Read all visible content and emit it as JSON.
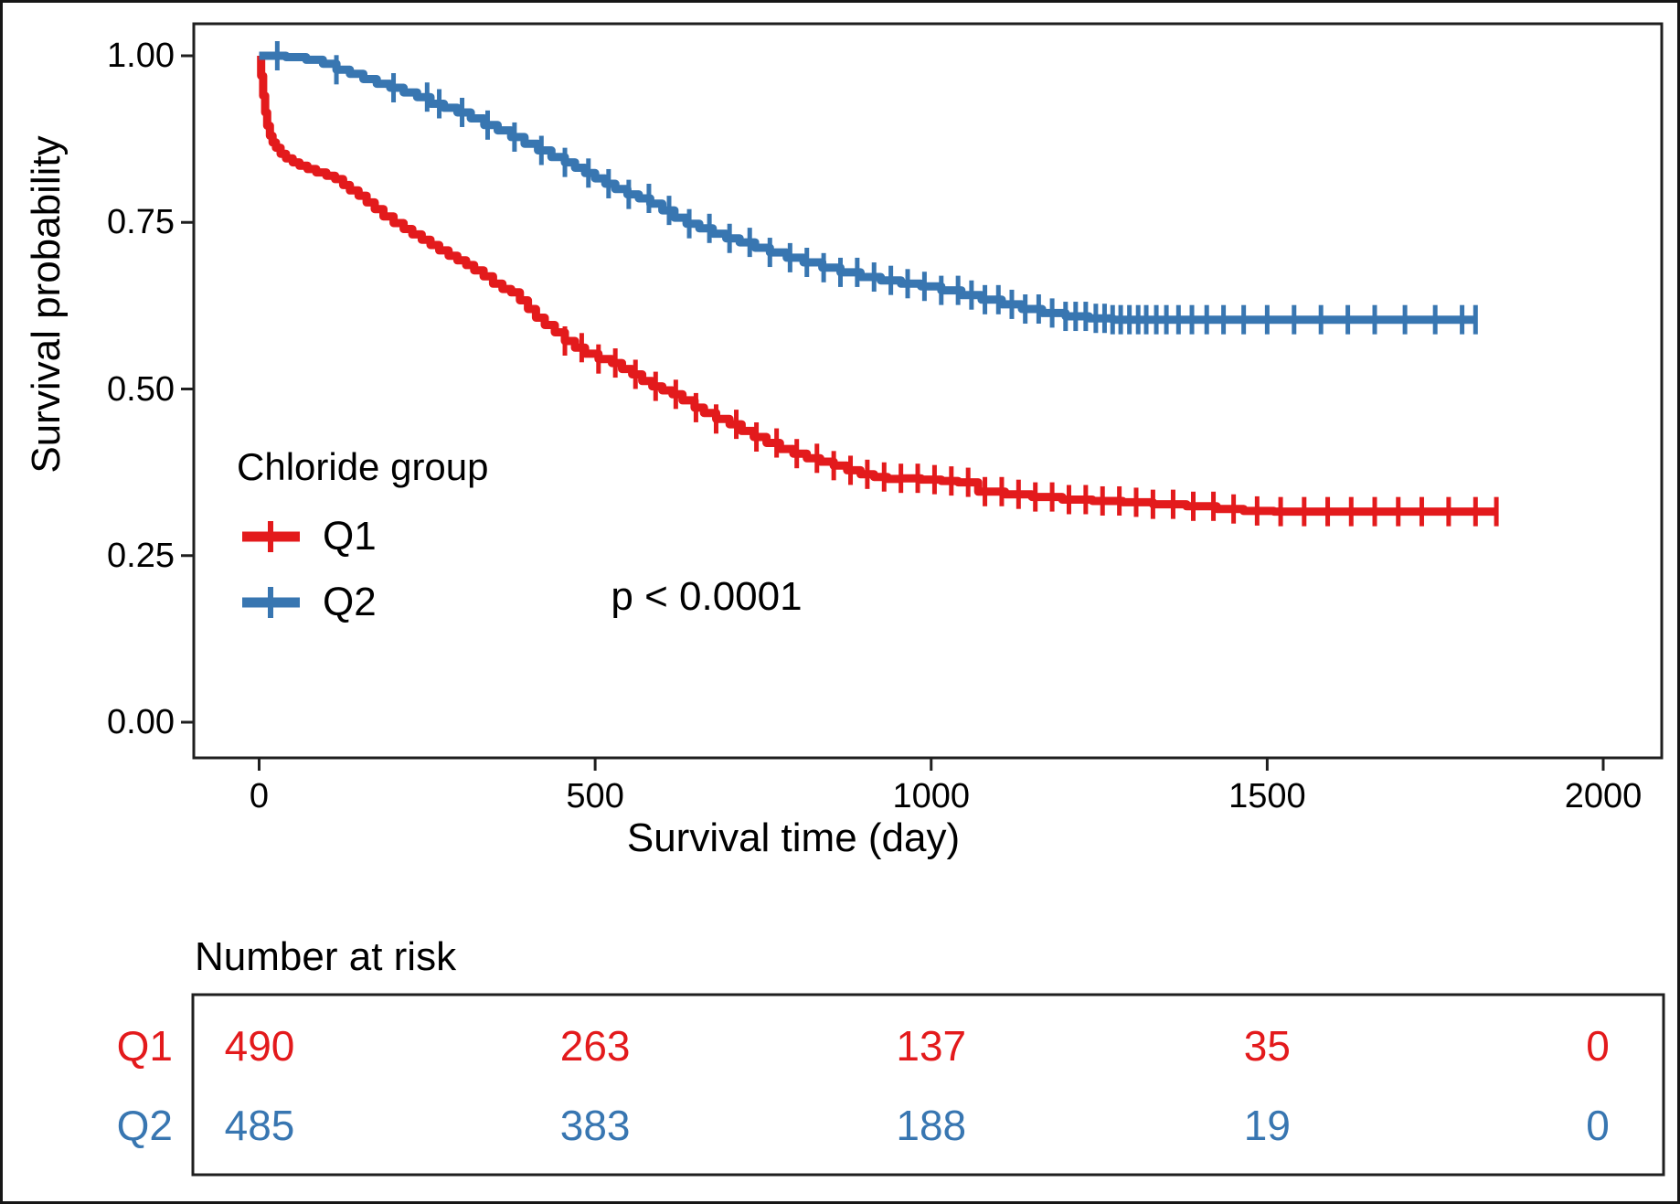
{
  "figure": {
    "background": "#ffffff",
    "frame_color": "#161616",
    "axis_color": "#1f1f1f"
  },
  "chart_data": {
    "type": "line",
    "subtype": "kaplan-meier-step-survival",
    "title": "",
    "xlabel": "Survival time (day)",
    "ylabel": "Survival probability",
    "xlim": [
      0,
      2000
    ],
    "ylim": [
      0.0,
      1.0
    ],
    "grid": "off",
    "xticks": [
      0,
      500,
      1000,
      1500,
      2000
    ],
    "xtick_labels": [
      "0",
      "500",
      "1000",
      "1500",
      "2000"
    ],
    "yticks": [
      1.0,
      0.75,
      0.5,
      0.25,
      0.0
    ],
    "ytick_labels": [
      "1.00",
      "0.75",
      "0.50",
      "0.25",
      "0.00"
    ],
    "legend_title": "Chloride group",
    "legend_position": "inside-left",
    "pvalue_text": "p < 0.0001",
    "series": [
      {
        "name": "Q1",
        "color": "#E31A1C",
        "points": [
          [
            0,
            1.0
          ],
          [
            3,
            0.97
          ],
          [
            6,
            0.94
          ],
          [
            9,
            0.915
          ],
          [
            12,
            0.895
          ],
          [
            16,
            0.88
          ],
          [
            20,
            0.87
          ],
          [
            25,
            0.862
          ],
          [
            32,
            0.853
          ],
          [
            40,
            0.846
          ],
          [
            50,
            0.84
          ],
          [
            60,
            0.835
          ],
          [
            72,
            0.83
          ],
          [
            85,
            0.825
          ],
          [
            100,
            0.82
          ],
          [
            113,
            0.815
          ],
          [
            125,
            0.806
          ],
          [
            135,
            0.798
          ],
          [
            148,
            0.79
          ],
          [
            160,
            0.78
          ],
          [
            172,
            0.77
          ],
          [
            185,
            0.759
          ],
          [
            200,
            0.749
          ],
          [
            215,
            0.74
          ],
          [
            228,
            0.732
          ],
          [
            242,
            0.724
          ],
          [
            255,
            0.716
          ],
          [
            268,
            0.708
          ],
          [
            282,
            0.7
          ],
          [
            295,
            0.693
          ],
          [
            308,
            0.686
          ],
          [
            320,
            0.678
          ],
          [
            334,
            0.669
          ],
          [
            348,
            0.658
          ],
          [
            362,
            0.65
          ],
          [
            375,
            0.645
          ],
          [
            388,
            0.633
          ],
          [
            400,
            0.62
          ],
          [
            412,
            0.607
          ],
          [
            425,
            0.596
          ],
          [
            440,
            0.585
          ],
          [
            455,
            0.572
          ],
          [
            470,
            0.562
          ],
          [
            485,
            0.553
          ],
          [
            505,
            0.545
          ],
          [
            525,
            0.539
          ],
          [
            540,
            0.53
          ],
          [
            555,
            0.522
          ],
          [
            570,
            0.512
          ],
          [
            585,
            0.504
          ],
          [
            600,
            0.498
          ],
          [
            615,
            0.492
          ],
          [
            630,
            0.483
          ],
          [
            648,
            0.472
          ],
          [
            662,
            0.464
          ],
          [
            680,
            0.455
          ],
          [
            700,
            0.447
          ],
          [
            718,
            0.437
          ],
          [
            736,
            0.428
          ],
          [
            755,
            0.419
          ],
          [
            775,
            0.41
          ],
          [
            795,
            0.403
          ],
          [
            815,
            0.396
          ],
          [
            835,
            0.391
          ],
          [
            855,
            0.385
          ],
          [
            875,
            0.378
          ],
          [
            895,
            0.372
          ],
          [
            915,
            0.368
          ],
          [
            935,
            0.365
          ],
          [
            955,
            0.366
          ],
          [
            985,
            0.364
          ],
          [
            1015,
            0.362
          ],
          [
            1040,
            0.36
          ],
          [
            1070,
            0.346
          ],
          [
            1110,
            0.342
          ],
          [
            1150,
            0.338
          ],
          [
            1195,
            0.334
          ],
          [
            1240,
            0.332
          ],
          [
            1285,
            0.33
          ],
          [
            1330,
            0.327
          ],
          [
            1380,
            0.324
          ],
          [
            1425,
            0.32
          ],
          [
            1465,
            0.317
          ],
          [
            1510,
            0.316
          ],
          [
            1841,
            0.316
          ]
        ],
        "censor_times": [
          455,
          480,
          505,
          530,
          560,
          590,
          620,
          650,
          680,
          710,
          740,
          770,
          800,
          830,
          855,
          880,
          905,
          930,
          955,
          980,
          1005,
          1030,
          1055,
          1080,
          1105,
          1130,
          1155,
          1180,
          1205,
          1230,
          1255,
          1280,
          1305,
          1330,
          1360,
          1390,
          1420,
          1450,
          1485,
          1520,
          1555,
          1590,
          1625,
          1660,
          1695,
          1730,
          1770,
          1810,
          1841
        ]
      },
      {
        "name": "Q2",
        "color": "#3876B1",
        "points": [
          [
            0,
            1.0
          ],
          [
            40,
            0.998
          ],
          [
            70,
            0.994
          ],
          [
            95,
            0.988
          ],
          [
            115,
            0.979
          ],
          [
            135,
            0.973
          ],
          [
            155,
            0.965
          ],
          [
            175,
            0.958
          ],
          [
            195,
            0.952
          ],
          [
            215,
            0.945
          ],
          [
            235,
            0.938
          ],
          [
            255,
            0.928
          ],
          [
            275,
            0.922
          ],
          [
            295,
            0.915
          ],
          [
            315,
            0.906
          ],
          [
            335,
            0.896
          ],
          [
            355,
            0.888
          ],
          [
            375,
            0.878
          ],
          [
            395,
            0.868
          ],
          [
            415,
            0.858
          ],
          [
            435,
            0.848
          ],
          [
            455,
            0.84
          ],
          [
            470,
            0.832
          ],
          [
            485,
            0.824
          ],
          [
            500,
            0.816
          ],
          [
            515,
            0.808
          ],
          [
            530,
            0.8
          ],
          [
            548,
            0.792
          ],
          [
            565,
            0.786
          ],
          [
            582,
            0.778
          ],
          [
            600,
            0.768
          ],
          [
            618,
            0.757
          ],
          [
            636,
            0.748
          ],
          [
            655,
            0.741
          ],
          [
            675,
            0.733
          ],
          [
            695,
            0.726
          ],
          [
            715,
            0.72
          ],
          [
            738,
            0.712
          ],
          [
            760,
            0.705
          ],
          [
            785,
            0.697
          ],
          [
            810,
            0.69
          ],
          [
            838,
            0.682
          ],
          [
            865,
            0.675
          ],
          [
            895,
            0.668
          ],
          [
            925,
            0.663
          ],
          [
            955,
            0.658
          ],
          [
            985,
            0.654
          ],
          [
            1015,
            0.648
          ],
          [
            1045,
            0.641
          ],
          [
            1075,
            0.634
          ],
          [
            1105,
            0.627
          ],
          [
            1135,
            0.62
          ],
          [
            1165,
            0.614
          ],
          [
            1200,
            0.609
          ],
          [
            1235,
            0.606
          ],
          [
            1270,
            0.604
          ],
          [
            1810,
            0.604
          ]
        ],
        "censor_times": [
          27,
          115,
          200,
          250,
          268,
          302,
          340,
          380,
          420,
          455,
          490,
          520,
          550,
          580,
          610,
          640,
          670,
          700,
          730,
          760,
          790,
          815,
          840,
          865,
          890,
          915,
          940,
          965,
          990,
          1015,
          1040,
          1060,
          1080,
          1100,
          1120,
          1140,
          1160,
          1180,
          1200,
          1215,
          1230,
          1245,
          1258,
          1270,
          1282,
          1295,
          1308,
          1320,
          1335,
          1350,
          1368,
          1388,
          1410,
          1435,
          1465,
          1500,
          1540,
          1580,
          1620,
          1660,
          1705,
          1750,
          1790,
          1810
        ]
      }
    ]
  },
  "risk_table": {
    "title": "Number at risk",
    "time_points": [
      "0",
      "500",
      "1000",
      "1500",
      "2000"
    ],
    "rows": [
      {
        "name": "Q1",
        "color": "#E31A1C",
        "values": [
          "490",
          "263",
          "137",
          "35",
          "0"
        ]
      },
      {
        "name": "Q2",
        "color": "#3876B1",
        "values": [
          "485",
          "383",
          "188",
          "19",
          "0"
        ]
      }
    ]
  }
}
